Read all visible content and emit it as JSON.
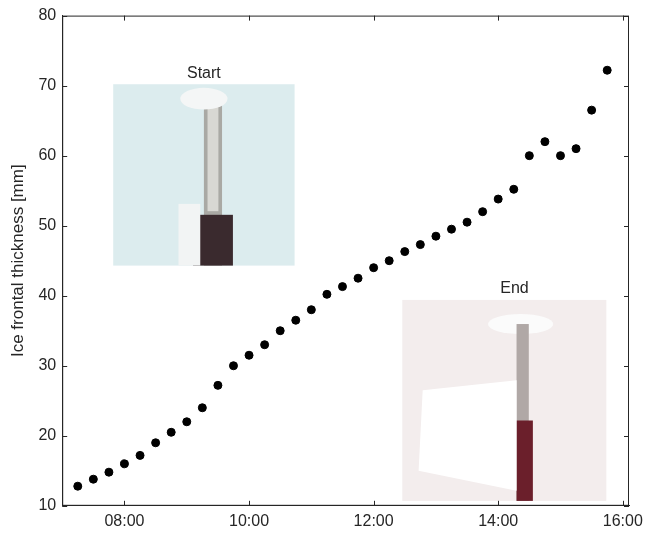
{
  "chart_data": {
    "type": "scatter",
    "y_label": "Ice frontal thickness [mm]",
    "x": [
      7.25,
      7.5,
      7.75,
      8,
      8.25,
      8.5,
      8.75,
      9,
      9.25,
      9.5,
      9.75,
      10,
      10.25,
      10.5,
      10.75,
      11,
      11.25,
      11.5,
      11.75,
      12,
      12.25,
      12.5,
      12.75,
      13,
      13.25,
      13.5,
      13.75,
      14,
      14.25,
      14.5,
      14.75,
      15,
      15.25,
      15.5,
      15.75
    ],
    "values": [
      12.8,
      13.8,
      14.8,
      16,
      17.2,
      19,
      20.5,
      22,
      24,
      27.2,
      30,
      31.5,
      33,
      35,
      36.5,
      38,
      40.2,
      41.3,
      42.5,
      44,
      45,
      46.3,
      47.3,
      48.5,
      49.5,
      50.5,
      52,
      53.8,
      55.2,
      60,
      62,
      60,
      61,
      66.5,
      72.2
    ],
    "color": "#000000",
    "marker": "circle",
    "xlim": [
      7,
      16.1
    ],
    "xticks": [
      {
        "value": 8,
        "label": "08:00"
      },
      {
        "value": 10,
        "label": "10:00"
      },
      {
        "value": 12,
        "label": "12:00"
      },
      {
        "value": 14,
        "label": "14:00"
      },
      {
        "value": 16,
        "label": "16:00"
      }
    ],
    "ylim": [
      10,
      80
    ],
    "yticks": [
      10,
      20,
      30,
      40,
      50,
      60,
      70,
      80
    ],
    "grid": false,
    "annotations": [
      "Start",
      "End"
    ]
  }
}
